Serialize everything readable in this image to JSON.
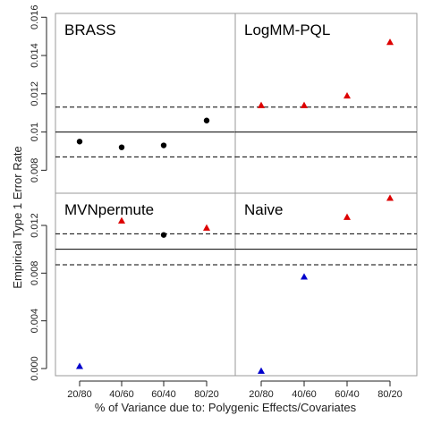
{
  "chart_data": {
    "type": "scatter",
    "xlabel": "% of Variance due to: Polygenic Effects/Covariates",
    "ylabel": "Empirical Type 1 Error Rate",
    "categories": [
      "20/80",
      "40/60",
      "60/40",
      "80/20"
    ],
    "reference_lines": {
      "solid": 0.01,
      "dashed": [
        0.0087,
        0.0113
      ]
    },
    "top_row": {
      "ylim": [
        0.0068,
        0.0162
      ],
      "yticks": [
        0.008,
        0.01,
        0.012,
        0.014,
        0.016
      ],
      "ytick_labels": [
        "0.008",
        "0.01",
        "0.012",
        "0.014",
        "0.016"
      ]
    },
    "bottom_row": {
      "ylim": [
        -0.0006,
        0.0147
      ],
      "yticks": [
        0,
        0.004,
        0.008,
        0.012
      ],
      "ytick_labels": [
        "0.000",
        "0.004",
        "0.008",
        "0.012"
      ]
    },
    "panels": [
      {
        "title": "BRASS",
        "row": "top",
        "col": 0,
        "points": [
          {
            "x": "20/80",
            "y": 0.0095,
            "color": "#000000",
            "marker": "circle"
          },
          {
            "x": "40/60",
            "y": 0.0092,
            "color": "#000000",
            "marker": "circle"
          },
          {
            "x": "60/40",
            "y": 0.0093,
            "color": "#000000",
            "marker": "circle"
          },
          {
            "x": "80/20",
            "y": 0.0106,
            "color": "#000000",
            "marker": "circle"
          }
        ]
      },
      {
        "title": "LogMM-PQL",
        "row": "top",
        "col": 1,
        "points": [
          {
            "x": "20/80",
            "y": 0.0114,
            "color": "#dd0000",
            "marker": "triangle-up"
          },
          {
            "x": "40/60",
            "y": 0.0114,
            "color": "#dd0000",
            "marker": "triangle-up"
          },
          {
            "x": "60/40",
            "y": 0.0119,
            "color": "#dd0000",
            "marker": "triangle-up"
          },
          {
            "x": "80/20",
            "y": 0.0147,
            "color": "#dd0000",
            "marker": "triangle-up"
          }
        ]
      },
      {
        "title": "MVNpermute",
        "row": "bottom",
        "col": 0,
        "points": [
          {
            "x": "20/80",
            "y": 0.0002,
            "color": "#0000cc",
            "marker": "triangle-up"
          },
          {
            "x": "40/60",
            "y": 0.0124,
            "color": "#dd0000",
            "marker": "triangle-up"
          },
          {
            "x": "60/40",
            "y": 0.0112,
            "color": "#000000",
            "marker": "circle"
          },
          {
            "x": "80/20",
            "y": 0.0118,
            "color": "#dd0000",
            "marker": "triangle-up"
          }
        ]
      },
      {
        "title": "Naive",
        "row": "bottom",
        "col": 1,
        "points": [
          {
            "x": "20/80",
            "y": -0.0002,
            "color": "#0000cc",
            "marker": "triangle-up"
          },
          {
            "x": "40/60",
            "y": 0.0077,
            "color": "#0000cc",
            "marker": "triangle-up"
          },
          {
            "x": "60/40",
            "y": 0.0127,
            "color": "#dd0000",
            "marker": "triangle-up"
          },
          {
            "x": "80/20",
            "y": 0.0143,
            "color": "#dd0000",
            "marker": "triangle-up"
          }
        ]
      }
    ],
    "grid": false,
    "legend": "none"
  }
}
